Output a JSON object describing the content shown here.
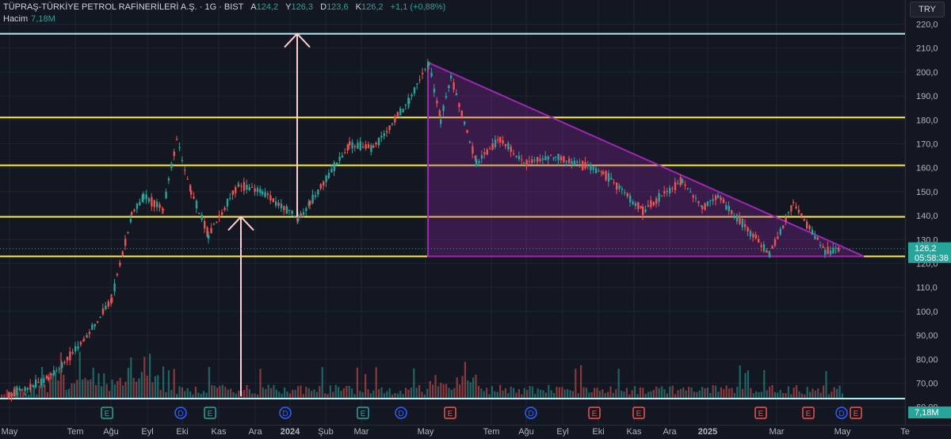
{
  "header": {
    "symbol": "TÜPRAŞ-TÜRKİYE PETROL RAFİNERİLERİ A.Ş. · 1G · BIST",
    "open_label": "A",
    "open": "124,2",
    "high_label": "Y",
    "high": "126,3",
    "low_label": "D",
    "low": "123,6",
    "close_label": "K",
    "close": "126,2",
    "change": "+1,1 (+0,88%)",
    "volume_label": "Hacim",
    "volume": "7,18M"
  },
  "currency_button": "TRY",
  "last_price_tag": {
    "price": "126,2",
    "countdown": "05:58:38"
  },
  "volume_tag": "7,18M",
  "colors": {
    "background": "#131722",
    "up": "#26a69a",
    "down": "#ef5350",
    "support_lines": "#ffeb3b",
    "triangle": "#9c27b0",
    "top_line": "#b2ebf2",
    "arrows": "#ffcdd2"
  },
  "chart_data": {
    "type": "candlestick",
    "x_ticks": [
      "May",
      "Tem",
      "Ağu",
      "Eyl",
      "Eki",
      "Kas",
      "Ara",
      "2024",
      "Şub",
      "Mar",
      "May",
      "Tem",
      "Ağu",
      "Eyl",
      "Eki",
      "Kas",
      "Ara",
      "2025",
      "Mar",
      "May",
      "Te"
    ],
    "y_ticks": [
      "220,0",
      "210,0",
      "200,0",
      "190,0",
      "180,0",
      "170,0",
      "160,0",
      "150,0",
      "140,0",
      "130,0",
      "120,0",
      "110,0",
      "100,0",
      "90,00",
      "80,00",
      "70,00",
      "60,00"
    ],
    "ylim": [
      60,
      220
    ],
    "price_path": [
      {
        "x": "May 2023",
        "y": 65
      },
      {
        "x": "Jun 2023",
        "y": 72
      },
      {
        "x": "Jul 2023",
        "y": 88
      },
      {
        "x": "Aug 2023",
        "y": 105
      },
      {
        "x": "early Sep 2023",
        "y": 140
      },
      {
        "x": "Sep 2023",
        "y": 148
      },
      {
        "x": "late Sep 2023",
        "y": 143
      },
      {
        "x": "early Oct 2023",
        "y": 172
      },
      {
        "x": "mid Oct 2023",
        "y": 150
      },
      {
        "x": "early Nov 2023",
        "y": 132
      },
      {
        "x": "late Nov 2023",
        "y": 153
      },
      {
        "x": "Dec 2023",
        "y": 150
      },
      {
        "x": "Jan 2024",
        "y": 139
      },
      {
        "x": "mid Jan 2024",
        "y": 145
      },
      {
        "x": "Feb 2024",
        "y": 170
      },
      {
        "x": "Mar 2024",
        "y": 168
      },
      {
        "x": "Apr 2024",
        "y": 188
      },
      {
        "x": "late Apr 2024",
        "y": 204
      },
      {
        "x": "May 2024",
        "y": 180
      },
      {
        "x": "mid May 2024",
        "y": 198
      },
      {
        "x": "Jun 2024",
        "y": 162
      },
      {
        "x": "Jul 2024",
        "y": 172
      },
      {
        "x": "Aug 2024",
        "y": 162
      },
      {
        "x": "Sep 2024",
        "y": 165
      },
      {
        "x": "Oct 2024",
        "y": 158
      },
      {
        "x": "Nov 2024",
        "y": 142
      },
      {
        "x": "Dec 2024",
        "y": 155
      },
      {
        "x": "Jan 2025",
        "y": 143
      },
      {
        "x": "early Feb 2025",
        "y": 148
      },
      {
        "x": "late Feb 2025",
        "y": 124
      },
      {
        "x": "Mar 2025",
        "y": 145
      },
      {
        "x": "Apr 2025",
        "y": 125
      },
      {
        "x": "May 2025",
        "y": 126.2
      }
    ],
    "horizontal_levels": [
      {
        "name": "top",
        "y": 216
      },
      {
        "name": "resistance",
        "y": 181
      },
      {
        "name": "level",
        "y": 161
      },
      {
        "name": "support",
        "y": 139.5
      },
      {
        "name": "base",
        "y": 123
      }
    ],
    "event_markers": [
      "E",
      "D",
      "E",
      "D",
      "E",
      "D",
      "E",
      "D",
      "E",
      "E",
      "E",
      "E",
      "D",
      "E"
    ],
    "last_price": 126.2,
    "grid": true
  }
}
